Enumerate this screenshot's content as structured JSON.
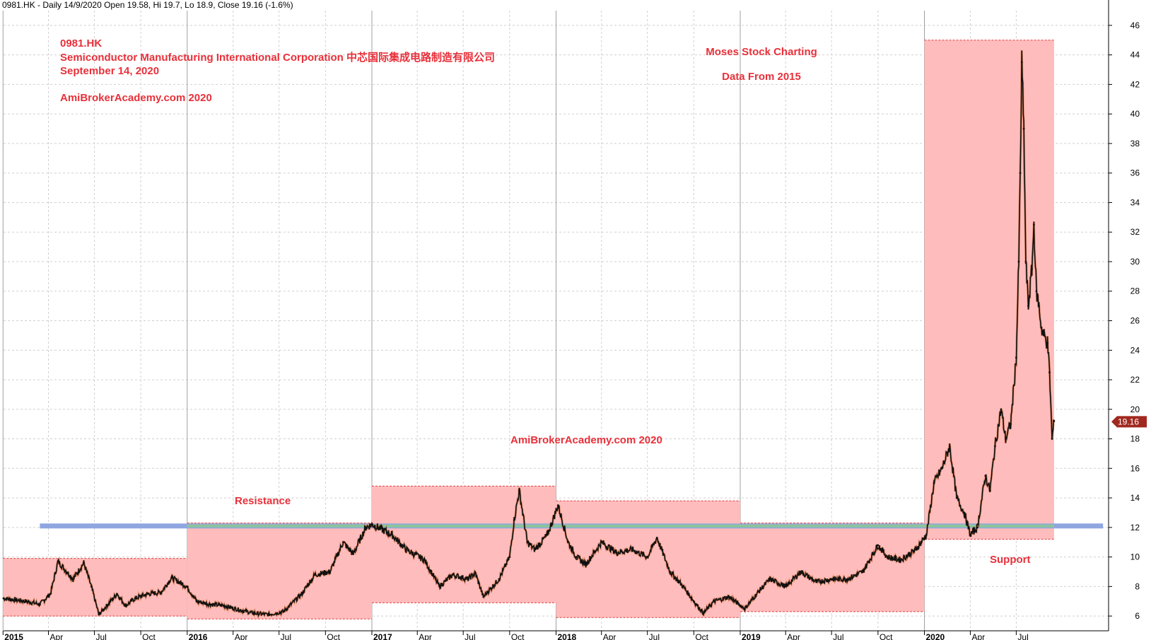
{
  "header": {
    "info": "0981.HK - Daily 14/9/2020 Open 19.58, Hi 19.7, Lo 18.9, Close 19.16 (-1.6%)"
  },
  "annotations": {
    "ticker": "0981.HK",
    "company": "Semiconductor Manufacturing International Corporation 中芯国际集成电路制造有限公司",
    "date": "September 14, 2020",
    "site_top": "AmiBrokerAcademy.com  2020",
    "moses": "Moses Stock Charting",
    "data_from": "Data From 2015",
    "site_mid": "AmiBrokerAcademy.com  2020",
    "resistance": "Resistance",
    "support": "Support"
  },
  "colors": {
    "annotation_text": "#e8303a",
    "box_fill": "#ffbcbc",
    "box_border": "#e04040",
    "resistance_line": "#8fa6e0",
    "support_band": "#8cc49a",
    "grid": "#d0d0d0",
    "price_line": "#111111",
    "price_badge": "#a0281e"
  },
  "price_badge": "19.16",
  "chart_data": {
    "type": "line",
    "ylim": [
      5,
      47
    ],
    "yticks": [
      6,
      8,
      10,
      12,
      14,
      16,
      18,
      20,
      22,
      24,
      26,
      28,
      30,
      32,
      34,
      36,
      38,
      40,
      42,
      44,
      46
    ],
    "xlim": [
      "2015-01-02",
      "2020-12-31"
    ],
    "month_labels": [
      {
        "d": "2015-01-01",
        "label": "2015",
        "year": true
      },
      {
        "d": "2015-04-01",
        "label": "Apr"
      },
      {
        "d": "2015-07-01",
        "label": "Jul"
      },
      {
        "d": "2015-10-01",
        "label": "Oct"
      },
      {
        "d": "2016-01-01",
        "label": "2016",
        "year": true
      },
      {
        "d": "2016-04-01",
        "label": "Apr"
      },
      {
        "d": "2016-07-01",
        "label": "Jul"
      },
      {
        "d": "2016-10-01",
        "label": "Oct"
      },
      {
        "d": "2017-01-01",
        "label": "2017",
        "year": true
      },
      {
        "d": "2017-04-01",
        "label": "Apr"
      },
      {
        "d": "2017-07-01",
        "label": "Jul"
      },
      {
        "d": "2017-10-01",
        "label": "Oct"
      },
      {
        "d": "2018-01-01",
        "label": "2018",
        "year": true
      },
      {
        "d": "2018-04-01",
        "label": "Apr"
      },
      {
        "d": "2018-07-01",
        "label": "Jul"
      },
      {
        "d": "2018-10-01",
        "label": "Oct"
      },
      {
        "d": "2019-01-01",
        "label": "2019",
        "year": true
      },
      {
        "d": "2019-04-01",
        "label": "Apr"
      },
      {
        "d": "2019-07-01",
        "label": "Jul"
      },
      {
        "d": "2019-10-01",
        "label": "Oct"
      },
      {
        "d": "2020-01-01",
        "label": "2020",
        "year": true
      },
      {
        "d": "2020-04-01",
        "label": "Apr"
      },
      {
        "d": "2020-07-01",
        "label": "Jul"
      }
    ],
    "grid": true,
    "yearly_range_boxes": [
      {
        "start": "2015-01-01",
        "end": "2016-01-01",
        "low": 6.0,
        "high": 9.9
      },
      {
        "start": "2016-01-01",
        "end": "2017-01-01",
        "low": 5.8,
        "high": 12.3
      },
      {
        "start": "2017-01-01",
        "end": "2018-01-01",
        "low": 6.9,
        "high": 14.8
      },
      {
        "start": "2018-01-01",
        "end": "2019-01-01",
        "low": 5.9,
        "high": 13.8
      },
      {
        "start": "2019-01-01",
        "end": "2020-01-01",
        "low": 6.3,
        "high": 12.3
      },
      {
        "start": "2020-01-01",
        "end": "2020-09-14",
        "low": 11.2,
        "high": 45.0
      }
    ],
    "resistance_level": 12.1,
    "resistance_span": [
      "2015-03-15",
      "2020-12-20"
    ],
    "support_level": 12.1,
    "support_span": [
      "2016-01-01",
      "2020-09-14"
    ],
    "last_close": 19.16,
    "series": [
      {
        "x": [
          "2015-01-02",
          "2015-02-15",
          "2015-03-15",
          "2015-04-05",
          "2015-04-20",
          "2015-05-20",
          "2015-06-10",
          "2015-06-25",
          "2015-07-10",
          "2015-08-15",
          "2015-09-01",
          "2015-09-20",
          "2015-10-15",
          "2015-11-10",
          "2015-12-01",
          "2015-12-31",
          "2016-01-20",
          "2016-02-15",
          "2016-03-15",
          "2016-04-15",
          "2016-05-10",
          "2016-06-10",
          "2016-07-10",
          "2016-08-15",
          "2016-09-10",
          "2016-10-10",
          "2016-11-05",
          "2016-11-25",
          "2016-12-20",
          "2017-01-02",
          "2017-02-10",
          "2017-03-10",
          "2017-04-15",
          "2017-05-15",
          "2017-06-10",
          "2017-07-10",
          "2017-07-25",
          "2017-08-10",
          "2017-09-10",
          "2017-10-01",
          "2017-10-10",
          "2017-10-20",
          "2017-11-05",
          "2017-11-20",
          "2017-12-15",
          "2018-01-05",
          "2018-01-25",
          "2018-02-10",
          "2018-03-01",
          "2018-04-01",
          "2018-05-01",
          "2018-06-01",
          "2018-07-01",
          "2018-07-20",
          "2018-08-15",
          "2018-09-10",
          "2018-10-01",
          "2018-10-20",
          "2018-11-10",
          "2018-12-10",
          "2019-01-10",
          "2019-02-10",
          "2019-03-01",
          "2019-04-01",
          "2019-05-01",
          "2019-06-01",
          "2019-07-01",
          "2019-08-01",
          "2019-09-01",
          "2019-10-01",
          "2019-10-20",
          "2019-11-15",
          "2019-12-15",
          "2020-01-05",
          "2020-01-20",
          "2020-02-05",
          "2020-02-20",
          "2020-03-05",
          "2020-03-20",
          "2020-04-01",
          "2020-04-15",
          "2020-05-01",
          "2020-05-10",
          "2020-05-20",
          "2020-06-01",
          "2020-06-10",
          "2020-06-20",
          "2020-07-01",
          "2020-07-06",
          "2020-07-09",
          "2020-07-12",
          "2020-07-16",
          "2020-07-20",
          "2020-07-25",
          "2020-08-01",
          "2020-08-05",
          "2020-08-10",
          "2020-08-15",
          "2020-08-20",
          "2020-08-25",
          "2020-09-01",
          "2020-09-05",
          "2020-09-10",
          "2020-09-14"
        ],
        "y": [
          7.2,
          7.0,
          6.8,
          7.5,
          9.7,
          8.5,
          9.6,
          8.0,
          6.1,
          7.5,
          6.7,
          7.2,
          7.5,
          7.6,
          8.6,
          8.0,
          7.0,
          6.8,
          6.7,
          6.4,
          6.2,
          6.1,
          6.3,
          7.5,
          8.8,
          9.0,
          11.0,
          10.2,
          12.0,
          12.2,
          11.5,
          10.5,
          9.8,
          8.0,
          8.8,
          8.5,
          8.9,
          7.3,
          8.5,
          10.0,
          12.5,
          14.5,
          11.0,
          10.5,
          11.5,
          13.5,
          11.0,
          10.0,
          9.5,
          11.0,
          10.3,
          10.5,
          10.0,
          11.3,
          9.0,
          8.0,
          7.0,
          6.2,
          7.0,
          7.3,
          6.5,
          7.8,
          8.5,
          8.0,
          9.0,
          8.3,
          8.5,
          8.5,
          9.0,
          10.8,
          10.0,
          9.8,
          10.5,
          11.5,
          15.0,
          16.0,
          17.5,
          14.0,
          13.0,
          11.5,
          12.0,
          15.5,
          14.5,
          17.5,
          20.0,
          18.0,
          19.0,
          23.5,
          30.0,
          36.0,
          43.5,
          39.0,
          30.0,
          27.0,
          29.5,
          32.5,
          28.0,
          27.0,
          25.5,
          25.0,
          24.5,
          22.5,
          18.0,
          19.2
        ]
      }
    ]
  }
}
